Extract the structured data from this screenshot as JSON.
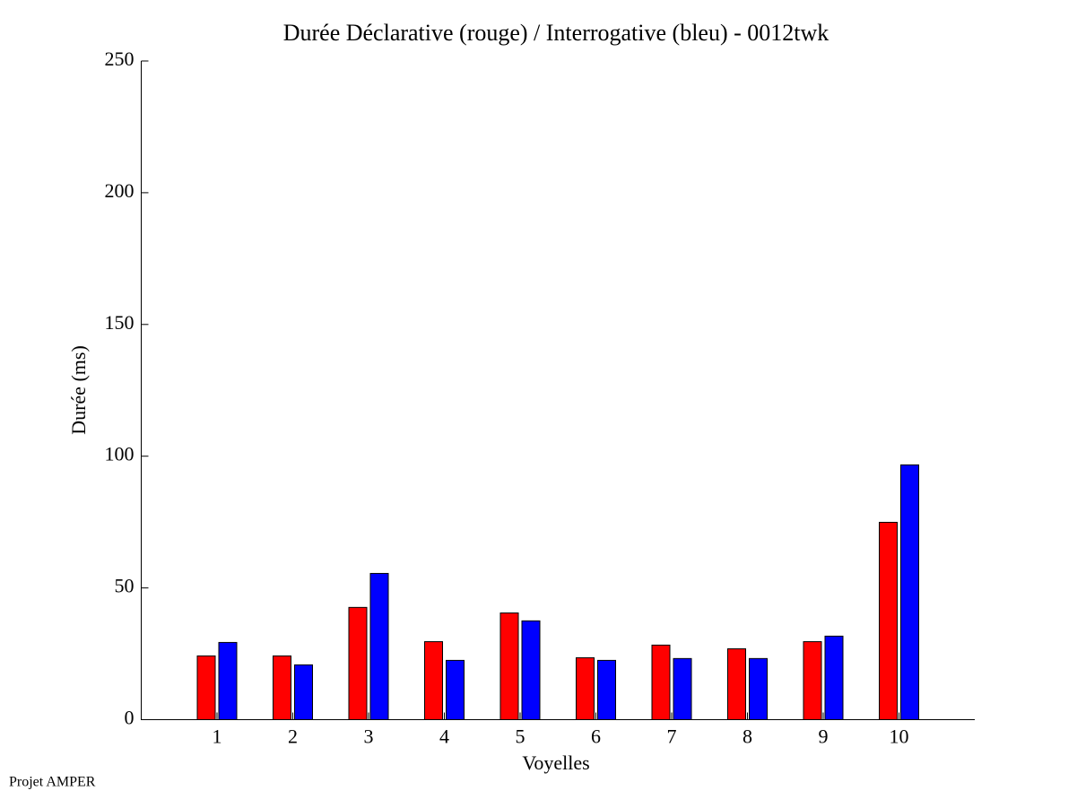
{
  "chart_data": {
    "type": "bar",
    "title": "Durée Déclarative (rouge) / Interrogative (bleu) - 0012twk",
    "x_label": "Voyelles",
    "y_label": "Durée (ms)",
    "footer": "Projet AMPER",
    "x": [
      1,
      2,
      3,
      4,
      5,
      6,
      7,
      8,
      9,
      10
    ],
    "xlim": [
      0,
      11
    ],
    "xticks": [
      1,
      2,
      3,
      4,
      5,
      6,
      7,
      8,
      9,
      10
    ],
    "ylim": [
      0,
      250
    ],
    "yticks": [
      0,
      50,
      100,
      150,
      200,
      250
    ],
    "grid": false,
    "series": [
      {
        "color": "#ff0000",
        "values": [
          24.2,
          24.2,
          42.6,
          29.6,
          40.5,
          23.5,
          28.3,
          26.9,
          29.6,
          74.9
        ]
      },
      {
        "color": "#0000ff",
        "values": [
          29.3,
          20.8,
          55.5,
          22.5,
          37.5,
          22.5,
          23.2,
          23.2,
          31.7,
          96.7
        ]
      }
    ]
  }
}
